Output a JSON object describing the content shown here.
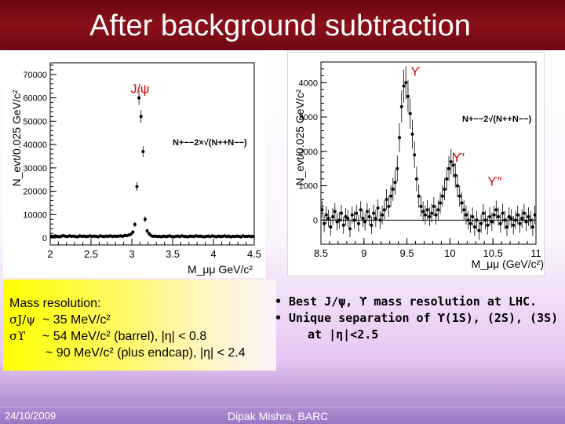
{
  "slide": {
    "title": "After background subtraction",
    "footer_date": "24/10/2009",
    "footer_author": "Dipak Mishra, BARC"
  },
  "resolution": {
    "heading": "Mass resolution:",
    "jpsi_symbol": "σJ/ψ",
    "jpsi_value": "~ 35 MeV/c²",
    "upsilon_symbol": "σϒ",
    "upsilon_barrel": "~ 54 MeV/c² (barrel), |η| < 0.8",
    "upsilon_endcap": "~ 90 MeV/c² (plus endcap), |η| < 2.4"
  },
  "summary": {
    "bullet": "•",
    "line1": "Best J/ψ, ϒ mass resolution at LHC.",
    "line2": "Unique separation of ϒ(1S), (2S), (3S)",
    "line3": "at |η|<2.5"
  },
  "chart_data": [
    {
      "type": "scatter",
      "ylabel": "N_evt/0.025 GeV/c²",
      "xlabel": "M_μμ GeV/c²",
      "xlim": [
        2,
        4.5
      ],
      "ylim": [
        -3000,
        75000
      ],
      "xticks": [
        2,
        2.5,
        3,
        3.5,
        4,
        4.5
      ],
      "yticks": [
        0,
        10000,
        20000,
        30000,
        40000,
        50000,
        60000,
        70000
      ],
      "legend": "N+−−2×√(N++N−−)",
      "annotations": [
        {
          "text": "J/ψ",
          "x": 3.1,
          "y": 62000
        }
      ],
      "series": [
        {
          "x": [
            2.0125,
            2.0375,
            2.0625,
            2.0875,
            2.1125,
            2.1375,
            2.1625,
            2.1875,
            2.2125,
            2.2375,
            2.2625,
            2.2875,
            2.3125,
            2.3375,
            2.3625,
            2.3875,
            2.4125,
            2.4375,
            2.4625,
            2.4875,
            2.5125,
            2.5375,
            2.5625,
            2.5875,
            2.6125,
            2.6375,
            2.6625,
            2.6875,
            2.7125,
            2.7375,
            2.7625,
            2.7875,
            2.8125,
            2.8375,
            2.8625,
            2.8875,
            2.9125,
            2.9375,
            2.9625,
            2.9875,
            3.0125,
            3.0375,
            3.0625,
            3.0875,
            3.1125,
            3.1375,
            3.1625,
            3.1875,
            3.2125,
            3.2375,
            3.2625,
            3.2875,
            3.3125,
            3.3375,
            3.3625,
            3.3875,
            3.4125,
            3.4375,
            3.4625,
            3.4875,
            3.5125,
            3.5375,
            3.5625,
            3.5875,
            3.6125,
            3.6375,
            3.6625,
            3.6875,
            3.7125,
            3.7375,
            3.7625,
            3.7875,
            3.8125,
            3.8375,
            3.8625,
            3.8875,
            3.9125,
            3.9375,
            3.9625,
            3.9875,
            4.0125,
            4.0375,
            4.0625,
            4.0875,
            4.1125,
            4.1375,
            4.1625,
            4.1875,
            4.2125,
            4.2375,
            4.2625,
            4.2875,
            4.3125,
            4.3375,
            4.3625,
            4.3875,
            4.4125,
            4.4375,
            4.4625,
            4.4875
          ],
          "y": [
            800,
            600,
            900,
            700,
            500,
            800,
            1000,
            700,
            600,
            900,
            700,
            800,
            600,
            500,
            900,
            700,
            800,
            600,
            700,
            900,
            600,
            800,
            700,
            500,
            900,
            700,
            600,
            800,
            700,
            900,
            600,
            800,
            700,
            800,
            900,
            700,
            1100,
            1000,
            1300,
            1600,
            2500,
            5800,
            22000,
            60000,
            52000,
            37000,
            8000,
            3000,
            1800,
            1000,
            700,
            800,
            600,
            700,
            500,
            800,
            600,
            700,
            900,
            600,
            500,
            700,
            800,
            600,
            900,
            700,
            600,
            500,
            800,
            700,
            600,
            900,
            700,
            800,
            600,
            500,
            700,
            800,
            600,
            900,
            700,
            500,
            800,
            600,
            700,
            900,
            600,
            800,
            500,
            700,
            600,
            800,
            700,
            500,
            900,
            600,
            700,
            800,
            600,
            700
          ],
          "yerr": [
            700,
            700,
            700,
            700,
            700,
            700,
            700,
            700,
            700,
            700,
            700,
            700,
            700,
            700,
            700,
            700,
            700,
            700,
            700,
            700,
            700,
            700,
            700,
            700,
            700,
            700,
            700,
            700,
            700,
            700,
            700,
            700,
            700,
            700,
            700,
            700,
            700,
            700,
            800,
            800,
            900,
            1200,
            1800,
            3000,
            2800,
            2400,
            1300,
            1000,
            900,
            800,
            700,
            700,
            700,
            700,
            700,
            700,
            700,
            700,
            700,
            700,
            700,
            700,
            700,
            700,
            700,
            700,
            700,
            700,
            700,
            700,
            700,
            700,
            700,
            700,
            700,
            700,
            700,
            700,
            700,
            700,
            700,
            700,
            700,
            700,
            700,
            700,
            700,
            700,
            700,
            700,
            700,
            700,
            700,
            700,
            700,
            700,
            700,
            700,
            700,
            700
          ]
        }
      ]
    },
    {
      "type": "scatter",
      "ylabel": "N_evt/0.025 GeV/c²",
      "xlabel": "M_μμ (GeV/c²)",
      "xlim": [
        8.5,
        11
      ],
      "ylim": [
        -700,
        4600
      ],
      "xticks": [
        8.5,
        9,
        9.5,
        10,
        10.5,
        11
      ],
      "yticks": [
        0,
        1000,
        2000,
        3000,
        4000
      ],
      "legend": "N+−−2√(N++N−−)",
      "annotations": [
        {
          "text": "ϒ",
          "x": 9.6,
          "y": 4200
        },
        {
          "text": "ϒ′",
          "x": 10.1,
          "y": 1700
        },
        {
          "text": "ϒ″",
          "x": 10.52,
          "y": 1000
        }
      ],
      "series": [
        {
          "x": [
            8.5125,
            8.5375,
            8.5625,
            8.5875,
            8.6125,
            8.6375,
            8.6625,
            8.6875,
            8.7125,
            8.7375,
            8.7625,
            8.7875,
            8.8125,
            8.8375,
            8.8625,
            8.8875,
            8.9125,
            8.9375,
            8.9625,
            8.9875,
            9.0125,
            9.0375,
            9.0625,
            9.0875,
            9.1125,
            9.1375,
            9.1625,
            9.1875,
            9.2125,
            9.2375,
            9.2625,
            9.2875,
            9.3125,
            9.3375,
            9.3625,
            9.3875,
            9.4125,
            9.4375,
            9.4625,
            9.4875,
            9.5125,
            9.5375,
            9.5625,
            9.5875,
            9.6125,
            9.6375,
            9.6625,
            9.6875,
            9.7125,
            9.7375,
            9.7625,
            9.7875,
            9.8125,
            9.8375,
            9.8625,
            9.8875,
            9.9125,
            9.9375,
            9.9625,
            9.9875,
            10.0125,
            10.0375,
            10.0625,
            10.0875,
            10.1125,
            10.1375,
            10.1625,
            10.1875,
            10.2125,
            10.2375,
            10.2625,
            10.2875,
            10.3125,
            10.3375,
            10.3625,
            10.3875,
            10.4125,
            10.4375,
            10.4625,
            10.4875,
            10.5125,
            10.5375,
            10.5625,
            10.5875,
            10.6125,
            10.6375,
            10.6625,
            10.6875,
            10.7125,
            10.7375,
            10.7625,
            10.7875,
            10.8125,
            10.8375,
            10.8625,
            10.8875,
            10.9125,
            10.9375,
            10.9625,
            10.9875
          ],
          "y": [
            300,
            -100,
            150,
            50,
            -200,
            100,
            250,
            -50,
            0,
            200,
            -150,
            100,
            50,
            -250,
            150,
            0,
            200,
            -100,
            300,
            50,
            -50,
            250,
            100,
            -150,
            200,
            50,
            350,
            0,
            150,
            300,
            600,
            400,
            700,
            900,
            1100,
            1500,
            2400,
            3300,
            3900,
            4000,
            3600,
            3100,
            2500,
            1900,
            1200,
            700,
            400,
            250,
            150,
            300,
            100,
            200,
            400,
            150,
            300,
            500,
            700,
            900,
            1200,
            1500,
            1700,
            1600,
            1300,
            1000,
            700,
            500,
            300,
            150,
            0,
            -100,
            100,
            -200,
            0,
            -300,
            -100,
            200,
            0,
            -150,
            100,
            -50,
            150,
            300,
            100,
            -100,
            200,
            0,
            -200,
            100,
            50,
            -150,
            0,
            150,
            -100,
            50,
            200,
            -50,
            100,
            0,
            -200,
            150
          ],
          "yerr": [
            250,
            250,
            250,
            250,
            250,
            250,
            250,
            250,
            250,
            250,
            250,
            250,
            250,
            250,
            250,
            250,
            250,
            250,
            250,
            250,
            250,
            250,
            250,
            250,
            250,
            250,
            260,
            260,
            270,
            280,
            300,
            300,
            320,
            340,
            360,
            380,
            420,
            460,
            480,
            480,
            470,
            440,
            420,
            390,
            360,
            330,
            300,
            290,
            280,
            280,
            270,
            270,
            280,
            280,
            290,
            300,
            310,
            320,
            340,
            360,
            370,
            360,
            350,
            330,
            310,
            300,
            290,
            280,
            270,
            270,
            270,
            270,
            270,
            270,
            270,
            270,
            270,
            270,
            270,
            270,
            270,
            270,
            270,
            270,
            270,
            270,
            270,
            270,
            270,
            270,
            270,
            270,
            270,
            270,
            270,
            270,
            270,
            270,
            270,
            270
          ]
        }
      ]
    }
  ]
}
